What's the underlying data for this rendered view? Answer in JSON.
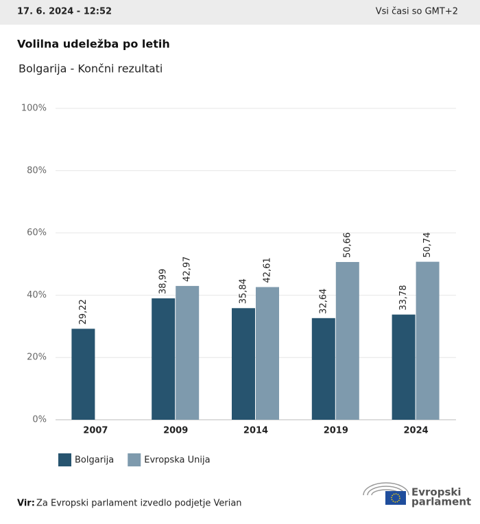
{
  "header": {
    "date": "17. 6. 2024 - 12:52",
    "timezone": "Vsi časi so GMT+2"
  },
  "chart_data": {
    "type": "bar",
    "title": "Volilna udeležba po letih",
    "subtitle": "Bolgarija - Končni rezultati",
    "categories": [
      "2007",
      "2009",
      "2014",
      "2019",
      "2024"
    ],
    "series": [
      {
        "name": "Bolgarija",
        "color": "#27546f",
        "values": [
          29.22,
          38.99,
          35.84,
          32.64,
          33.78
        ],
        "value_labels": [
          "29,22",
          "38,99",
          "35,84",
          "32,64",
          "33,78"
        ]
      },
      {
        "name": "Evropska Unija",
        "color": "#7e9aad",
        "values": [
          null,
          42.97,
          42.61,
          50.66,
          50.74
        ],
        "value_labels": [
          null,
          "42,97",
          "42,61",
          "50,66",
          "50,74"
        ]
      }
    ],
    "ylim": [
      0,
      100
    ],
    "yticks": [
      {
        "value": 0,
        "label": "0%"
      },
      {
        "value": 20,
        "label": "20%"
      },
      {
        "value": 40,
        "label": "40%"
      },
      {
        "value": 60,
        "label": "60%"
      },
      {
        "value": 80,
        "label": "80%"
      },
      {
        "value": 100,
        "label": "100%"
      }
    ],
    "grid": true,
    "legend": "bottom-left"
  },
  "source": {
    "label": "Vir:",
    "text": "Za Evropski parlament izvedlo podjetje Verian"
  },
  "logo": {
    "line1": "Evropski",
    "line2": "parlament"
  }
}
